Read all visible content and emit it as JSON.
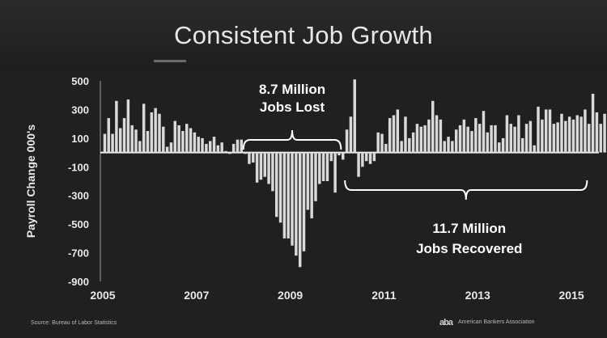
{
  "slide": {
    "title": "Consistent Job Growth",
    "source": "Source: Bureau of Labor Statistics",
    "logo_text": "American Bankers Association",
    "logo_mark": "aba",
    "background_color": "#202020",
    "bar_color": "#d9d9d9",
    "text_color": "#e8e8e8"
  },
  "chart_data": {
    "type": "bar",
    "ylabel": "Payroll Change 000's",
    "xlabel": "",
    "ylim": [
      -900,
      500
    ],
    "yticks": [
      500,
      300,
      100,
      -100,
      -300,
      -500,
      -700,
      -900
    ],
    "xlim": [
      2005,
      2015.5
    ],
    "xticks": [
      "2005",
      "2007",
      "2009",
      "2011",
      "2013",
      "2015"
    ],
    "grid": false,
    "legend": "none",
    "series": [
      {
        "start": "2005-01",
        "frequency": "monthly",
        "values": [
          130,
          240,
          130,
          360,
          170,
          240,
          370,
          190,
          160,
          80,
          340,
          150,
          280,
          310,
          270,
          180,
          40,
          70,
          220,
          190,
          150,
          200,
          170,
          140,
          110,
          100,
          60,
          80,
          110,
          50,
          70,
          10,
          -10,
          60,
          90,
          90,
          -10,
          -80,
          -70,
          -210,
          -190,
          -170,
          -220,
          -270,
          -450,
          -490,
          -600,
          -600,
          -650,
          -720,
          -800,
          -690,
          -400,
          -460,
          -340,
          -220,
          -200,
          -200,
          -60,
          -280,
          -20,
          -50,
          160,
          250,
          510,
          -170,
          -100,
          -60,
          -80,
          -60,
          140,
          130,
          60,
          240,
          260,
          300,
          80,
          250,
          100,
          140,
          200,
          180,
          190,
          230,
          360,
          260,
          230,
          80,
          110,
          80,
          160,
          190,
          230,
          180,
          150,
          240,
          200,
          290,
          140,
          190,
          190,
          70,
          100,
          260,
          200,
          180,
          260,
          100,
          200,
          220,
          50,
          320,
          230,
          300,
          300,
          200,
          210,
          270,
          220,
          250,
          230,
          260,
          250,
          300,
          200,
          410,
          280,
          200,
          270,
          130,
          210
        ]
      }
    ],
    "annotations": [
      {
        "line1": "8.7 Million",
        "line2": "Jobs Lost",
        "bracket_start": "2008-01",
        "bracket_end": "2010-02"
      },
      {
        "line1": "11.7 Million",
        "line2": "Jobs Recovered",
        "bracket_start": "2010-03",
        "bracket_end": "2015-05"
      }
    ]
  }
}
